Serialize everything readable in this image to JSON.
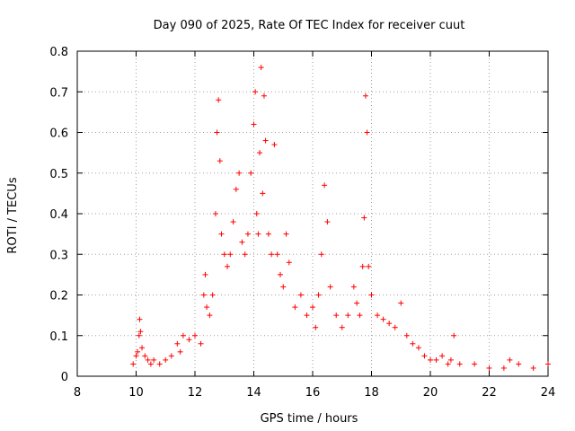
{
  "chart_data": {
    "type": "scatter",
    "title": "Day 090 of 2025, Rate Of TEC Index for receiver cuut",
    "xlabel": "GPS time / hours",
    "ylabel": "ROTI / TECUs",
    "xlim": [
      8,
      24
    ],
    "ylim": [
      0,
      0.8
    ],
    "x_ticks": [
      "8",
      "10",
      "12",
      "14",
      "16",
      "18",
      "20",
      "22",
      "24"
    ],
    "y_ticks": [
      "0",
      "0.1",
      "0.2",
      "0.3",
      "0.4",
      "0.5",
      "0.6",
      "0.7",
      "0.8"
    ],
    "grid": true,
    "marker": "+",
    "marker_color": "#ff0000",
    "series": [
      {
        "x": [
          9.9,
          10.0,
          10.05,
          10.1,
          10.12,
          10.15,
          10.2,
          10.3,
          10.4,
          10.5,
          10.6,
          10.8,
          11.0,
          11.2,
          11.4,
          11.5,
          11.6,
          11.8,
          12.0,
          12.2,
          12.3,
          12.35,
          12.4,
          12.5,
          12.6,
          12.7,
          12.75,
          12.8,
          12.85,
          12.9,
          13.0,
          13.1,
          13.2,
          13.3,
          13.4,
          13.5,
          13.6,
          13.7,
          13.8,
          13.9,
          14.0,
          14.05,
          14.1,
          14.15,
          14.2,
          14.25,
          14.3,
          14.35,
          14.4,
          14.5,
          14.6,
          14.7,
          14.8,
          14.9,
          15.0,
          15.1,
          15.2,
          15.4,
          15.6,
          15.8,
          16.0,
          16.1,
          16.2,
          16.3,
          16.4,
          16.5,
          16.6,
          16.8,
          17.0,
          17.2,
          17.4,
          17.5,
          17.6,
          17.7,
          17.75,
          17.8,
          17.85,
          17.9,
          18.0,
          18.2,
          18.4,
          18.6,
          18.8,
          19.0,
          19.2,
          19.4,
          19.6,
          19.8,
          20.0,
          20.2,
          20.4,
          20.6,
          20.7,
          20.8,
          21.0,
          21.5,
          22.0,
          22.5,
          22.7,
          23.0,
          23.5,
          24.0
        ],
        "y": [
          0.03,
          0.05,
          0.06,
          0.1,
          0.14,
          0.11,
          0.07,
          0.05,
          0.04,
          0.03,
          0.04,
          0.03,
          0.04,
          0.05,
          0.08,
          0.06,
          0.1,
          0.09,
          0.1,
          0.08,
          0.2,
          0.25,
          0.17,
          0.15,
          0.2,
          0.4,
          0.6,
          0.68,
          0.53,
          0.35,
          0.3,
          0.27,
          0.3,
          0.38,
          0.46,
          0.5,
          0.33,
          0.3,
          0.35,
          0.5,
          0.62,
          0.7,
          0.4,
          0.35,
          0.55,
          0.76,
          0.45,
          0.69,
          0.58,
          0.35,
          0.3,
          0.57,
          0.3,
          0.25,
          0.22,
          0.35,
          0.28,
          0.17,
          0.2,
          0.15,
          0.17,
          0.12,
          0.2,
          0.3,
          0.47,
          0.38,
          0.22,
          0.15,
          0.12,
          0.15,
          0.22,
          0.18,
          0.15,
          0.27,
          0.39,
          0.69,
          0.6,
          0.27,
          0.2,
          0.15,
          0.14,
          0.13,
          0.12,
          0.18,
          0.1,
          0.08,
          0.07,
          0.05,
          0.04,
          0.04,
          0.05,
          0.03,
          0.04,
          0.1,
          0.03,
          0.03,
          0.02,
          0.02,
          0.04,
          0.03,
          0.02,
          0.03
        ]
      }
    ]
  }
}
